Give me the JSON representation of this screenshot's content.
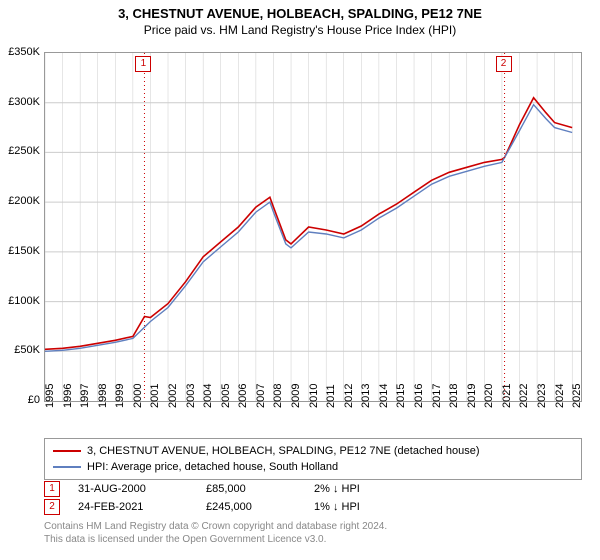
{
  "title": "3, CHESTNUT AVENUE, HOLBEACH, SPALDING, PE12 7NE",
  "subtitle": "Price paid vs. HM Land Registry's House Price Index (HPI)",
  "chart": {
    "type": "line",
    "background_color": "#ffffff",
    "border_color": "#999999",
    "grid_color": "#cccccc",
    "ylim": [
      0,
      350000
    ],
    "ytick_step": 50000,
    "yticks": [
      "£0",
      "£50K",
      "£100K",
      "£150K",
      "£200K",
      "£250K",
      "£300K",
      "£350K"
    ],
    "xlim": [
      1995,
      2025.5
    ],
    "xticks": [
      1995,
      1996,
      1997,
      1998,
      1999,
      2000,
      2001,
      2002,
      2003,
      2004,
      2005,
      2006,
      2007,
      2008,
      2009,
      2010,
      2011,
      2012,
      2013,
      2014,
      2015,
      2016,
      2017,
      2018,
      2019,
      2020,
      2021,
      2022,
      2023,
      2024,
      2025
    ],
    "tick_fontsize": 11,
    "series": [
      {
        "name": "price_paid",
        "color": "#cc0000",
        "width": 1.6,
        "x": [
          1995,
          1996,
          1997,
          1998,
          1999,
          2000,
          2000.66,
          2001,
          2002,
          2003,
          2004,
          2005,
          2006,
          2007,
          2007.8,
          2008,
          2008.7,
          2009,
          2010,
          2011,
          2012,
          2013,
          2014,
          2015,
          2016,
          2017,
          2018,
          2019,
          2020,
          2021,
          2021.15,
          2022,
          2022.8,
          2023.5,
          2024,
          2025
        ],
        "y": [
          52000,
          53000,
          55000,
          58000,
          61000,
          65000,
          85000,
          84000,
          98000,
          120000,
          145000,
          160000,
          175000,
          195000,
          205000,
          195000,
          162000,
          158000,
          175000,
          172000,
          168000,
          176000,
          188000,
          198000,
          210000,
          222000,
          230000,
          235000,
          240000,
          243000,
          245000,
          278000,
          305000,
          290000,
          280000,
          275000
        ]
      },
      {
        "name": "hpi",
        "color": "#5f7fbf",
        "width": 1.4,
        "x": [
          1995,
          1996,
          1997,
          1998,
          1999,
          2000,
          2001,
          2002,
          2003,
          2004,
          2005,
          2006,
          2007,
          2007.8,
          2008,
          2008.7,
          2009,
          2010,
          2011,
          2012,
          2013,
          2014,
          2015,
          2016,
          2017,
          2018,
          2019,
          2020,
          2021,
          2022,
          2022.8,
          2023.5,
          2024,
          2025
        ],
        "y": [
          50000,
          51000,
          53000,
          56000,
          59000,
          63000,
          80000,
          94000,
          116000,
          140000,
          155000,
          170000,
          190000,
          200000,
          190000,
          158000,
          154000,
          170000,
          168000,
          164000,
          172000,
          184000,
          194000,
          206000,
          218000,
          226000,
          231000,
          236000,
          240000,
          272000,
          298000,
          284000,
          275000,
          270000
        ]
      }
    ],
    "markers": [
      {
        "n": "1",
        "x": 2000.66,
        "y": 85000
      },
      {
        "n": "2",
        "x": 2021.15,
        "y": 245000
      }
    ],
    "marker_color": "#cc0000",
    "marker_line_style": "dotted"
  },
  "legend": {
    "border_color": "#999999",
    "items": [
      {
        "color": "#cc0000",
        "label": "3, CHESTNUT AVENUE, HOLBEACH, SPALDING, PE12 7NE (detached house)"
      },
      {
        "color": "#5f7fbf",
        "label": "HPI: Average price, detached house, South Holland"
      }
    ]
  },
  "events": [
    {
      "n": "1",
      "date": "31-AUG-2000",
      "price": "£85,000",
      "delta": "2% ↓ HPI"
    },
    {
      "n": "2",
      "date": "24-FEB-2021",
      "price": "£245,000",
      "delta": "1% ↓ HPI"
    }
  ],
  "credit": {
    "l1": "Contains HM Land Registry data © Crown copyright and database right 2024.",
    "l2": "This data is licensed under the Open Government Licence v3.0."
  }
}
